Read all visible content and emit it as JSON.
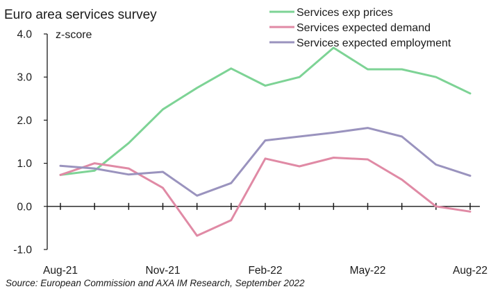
{
  "chart_data": {
    "type": "line",
    "title": "Euro area services survey",
    "ylabel": "z-score",
    "xlabel": "",
    "ylim": [
      -1.0,
      4.0
    ],
    "yticks": [
      "-1.0",
      "0.0",
      "1.0",
      "2.0",
      "3.0",
      "4.0"
    ],
    "x": [
      "Aug-21",
      "Sep-21",
      "Oct-21",
      "Nov-21",
      "Dec-21",
      "Jan-22",
      "Feb-22",
      "Mar-22",
      "Apr-22",
      "May-22",
      "Jun-22",
      "Jul-22",
      "Aug-22"
    ],
    "xticks_shown": [
      "Aug-21",
      "Nov-21",
      "Feb-22",
      "May-22",
      "Aug-22"
    ],
    "grid": false,
    "legend_position": "top-right",
    "series": [
      {
        "name": "Services exp prices",
        "color": "#7dd395",
        "values": [
          0.73,
          0.83,
          1.47,
          2.25,
          2.75,
          3.2,
          2.8,
          3.0,
          3.68,
          3.18,
          3.18,
          3.0,
          2.62
        ]
      },
      {
        "name": "Services expected demand",
        "color": "#e08aa5",
        "values": [
          0.73,
          1.0,
          0.88,
          0.43,
          -0.68,
          -0.32,
          1.11,
          0.93,
          1.13,
          1.09,
          0.62,
          0.0,
          -0.12
        ]
      },
      {
        "name": "Services expected employment",
        "color": "#9a93be",
        "values": [
          0.94,
          0.88,
          0.74,
          0.8,
          0.25,
          0.54,
          1.53,
          1.62,
          1.71,
          1.82,
          1.62,
          0.97,
          0.71
        ]
      }
    ],
    "source": "Source: European Commission and AXA IM Research, September 2022"
  }
}
